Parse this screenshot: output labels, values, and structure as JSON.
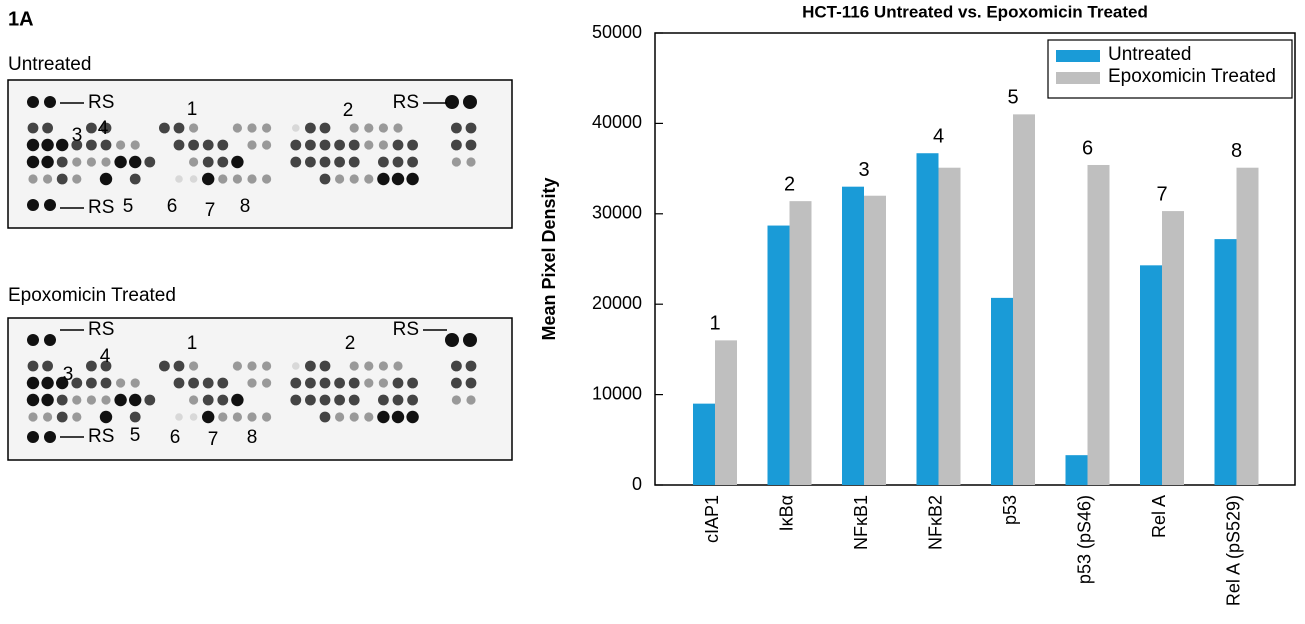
{
  "panel_label": "1A",
  "blots": [
    {
      "title": "Untreated",
      "labels": [
        "RS",
        "RS",
        "RS",
        "1",
        "2",
        "3",
        "4",
        "5",
        "6",
        "7",
        "8"
      ]
    },
    {
      "title": "Epoxomicin Treated",
      "labels": [
        "RS",
        "RS",
        "RS",
        "1",
        "2",
        "3",
        "4",
        "5",
        "6",
        "7",
        "8"
      ]
    }
  ],
  "chart_data": {
    "type": "bar",
    "title": "HCT-116 Untreated vs. Epoxomicin Treated",
    "y_label": "Mean Pixel Density",
    "categories": [
      "cIAP1",
      "IκBα",
      "NFκB1",
      "NFκB2",
      "p53",
      "p53 (pS46)",
      "Rel A",
      "Rel A (pS529)"
    ],
    "series": [
      {
        "name": "Untreated",
        "color": "#1a9bd7",
        "values": [
          9000,
          28700,
          33000,
          36700,
          20700,
          3300,
          24300,
          27200
        ]
      },
      {
        "name": "Epoxomicin Treated",
        "color": "#bfbfbf",
        "values": [
          16000,
          31400,
          32000,
          35100,
          41000,
          35400,
          30300,
          35100
        ]
      }
    ],
    "annotations": [
      "1",
      "2",
      "3",
      "4",
      "5",
      "6",
      "7",
      "8"
    ],
    "ylim": [
      0,
      50000
    ],
    "yticks": [
      0,
      10000,
      20000,
      30000,
      40000,
      50000
    ],
    "legend": "upper right"
  }
}
